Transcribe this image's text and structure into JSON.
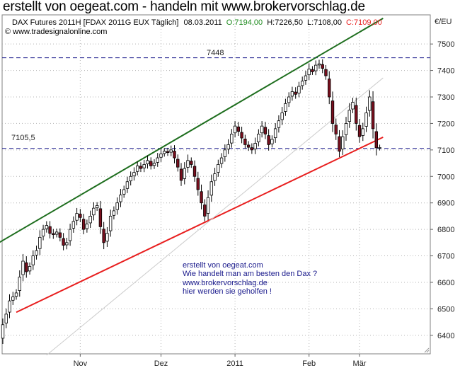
{
  "banner": "erstellt von oegeat.com - handeln mit www.brokervorschlag.de",
  "chart_data": {
    "type": "candlestick",
    "header": {
      "instrument": "DAX Futures 2011H [FDAX 2011G EUX  Täglich]",
      "date": "08.03.2011",
      "open": "O:7194,00",
      "high": "H:7226,50",
      "low": "L:7108,00",
      "close": "C:7109,00",
      "source": "© www.tradesignalonline.com"
    },
    "currency_label": "€/EU",
    "y_ticks": [
      6400,
      6500,
      6600,
      6700,
      6800,
      6900,
      7000,
      7100,
      7200,
      7300,
      7400,
      7500
    ],
    "ylim": [
      6330,
      7610
    ],
    "x_ticks": [
      "Nov",
      "Dez",
      "2011",
      "Feb",
      "Mär"
    ],
    "x_tick_index": [
      23,
      47,
      69,
      91,
      106
    ],
    "n_bars": 113,
    "hlines": [
      {
        "label": "7448",
        "value": 7448,
        "color": "#1a1a8c"
      },
      {
        "label": "7105,5",
        "value": 7105.5,
        "color": "#1a1a8c"
      }
    ],
    "trendlines": [
      {
        "name": "upper-channel",
        "color": "#1e6e1e",
        "from": [
          -1,
          6751
        ],
        "to": [
          113,
          7597
        ]
      },
      {
        "name": "lower-support",
        "color": "#e81e1e",
        "from": [
          4,
          6487
        ],
        "to": [
          113,
          7148
        ]
      },
      {
        "name": "thin-trend",
        "color": "#cccccc",
        "from": [
          13,
          6325
        ],
        "to": [
          113,
          7372
        ]
      }
    ],
    "closes": [
      6440,
      6480,
      6530,
      6545,
      6560,
      6620,
      6680,
      6640,
      6660,
      6700,
      6720,
      6770,
      6800,
      6815,
      6785,
      6780,
      6790,
      6770,
      6740,
      6750,
      6800,
      6830,
      6860,
      6845,
      6800,
      6820,
      6850,
      6880,
      6890,
      6810,
      6750,
      6785,
      6850,
      6870,
      6900,
      6930,
      6950,
      6980,
      7000,
      7015,
      7040,
      7030,
      7045,
      7060,
      7040,
      7050,
      7070,
      7085,
      7095,
      7090,
      7100,
      7070,
      7035,
      6985,
      7030,
      7060,
      7045,
      7000,
      6950,
      6900,
      6850,
      6920,
      6980,
      7010,
      7045,
      7070,
      7100,
      7120,
      7160,
      7190,
      7170,
      7145,
      7120,
      7110,
      7100,
      7125,
      7160,
      7190,
      7160,
      7120,
      7140,
      7180,
      7210,
      7240,
      7275,
      7300,
      7320,
      7310,
      7340,
      7360,
      7380,
      7405,
      7395,
      7420,
      7425,
      7408,
      7380,
      7300,
      7200,
      7160,
      7095,
      7150,
      7200,
      7250,
      7280,
      7200,
      7150,
      7180,
      7240,
      7300,
      7180,
      7108,
      7109
    ],
    "annotation": [
      "erstellt von oegeat.com",
      "Wie handelt man am besten den Dax ?",
      "www.brokervorschlag.de",
      "hier werden sie geholfen !"
    ]
  }
}
